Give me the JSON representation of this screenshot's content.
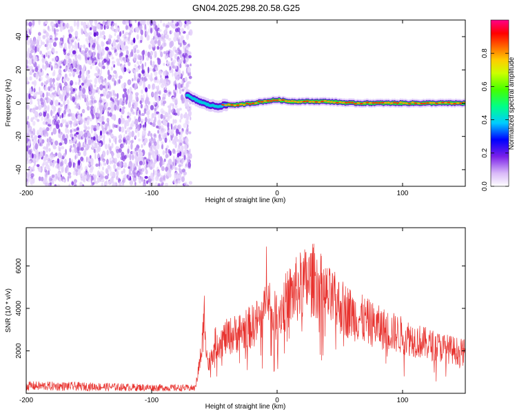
{
  "title": "GN04.2025.298.20.58.G25",
  "chart_data": [
    {
      "type": "heatmap",
      "xlabel": "Height of straight line (km)",
      "ylabel": "Frequency (Hz)",
      "xlim": [
        -200,
        150
      ],
      "ylim": [
        -50,
        50
      ],
      "xticks": [
        -200,
        -100,
        0,
        100
      ],
      "yticks": [
        -40,
        -20,
        0,
        20,
        40
      ],
      "noise_region_x": [
        -200,
        -72
      ],
      "signal_track": {
        "x": [
          -72,
          -68,
          -62,
          -55,
          -48,
          -40,
          -30,
          -20,
          -10,
          0,
          10,
          20,
          40,
          60,
          80,
          100,
          120,
          150
        ],
        "y": [
          5,
          3,
          1,
          -1,
          -2,
          -1,
          -1,
          0,
          1,
          2,
          1,
          1,
          1,
          0,
          0,
          0,
          0,
          0
        ]
      },
      "colorbar": {
        "label": "Normalized spectral amplitude",
        "ticks": [
          0.0,
          0.2,
          0.4,
          0.6,
          0.8
        ],
        "range": [
          0,
          1
        ]
      }
    },
    {
      "type": "line",
      "xlabel": "Height of straight line (km)",
      "ylabel": "SNR (10 * v/v)",
      "xlim": [
        -200,
        150
      ],
      "ylim": [
        0,
        7800
      ],
      "xticks": [
        -200,
        -100,
        0,
        100
      ],
      "yticks": [
        2000,
        4000,
        6000
      ],
      "line_color": "#e8322e",
      "series_envelope": {
        "x": [
          -200,
          -150,
          -100,
          -65,
          -60,
          -58,
          -55,
          -50,
          -40,
          -30,
          -20,
          -10,
          -8,
          -5,
          0,
          10,
          20,
          30,
          40,
          60,
          80,
          100,
          120,
          150
        ],
        "y": [
          500,
          450,
          380,
          350,
          2500,
          4500,
          1500,
          2800,
          3200,
          3500,
          3800,
          4500,
          7500,
          4200,
          4500,
          5500,
          6200,
          6500,
          5500,
          4500,
          3800,
          3300,
          2800,
          2300
        ]
      }
    }
  ]
}
